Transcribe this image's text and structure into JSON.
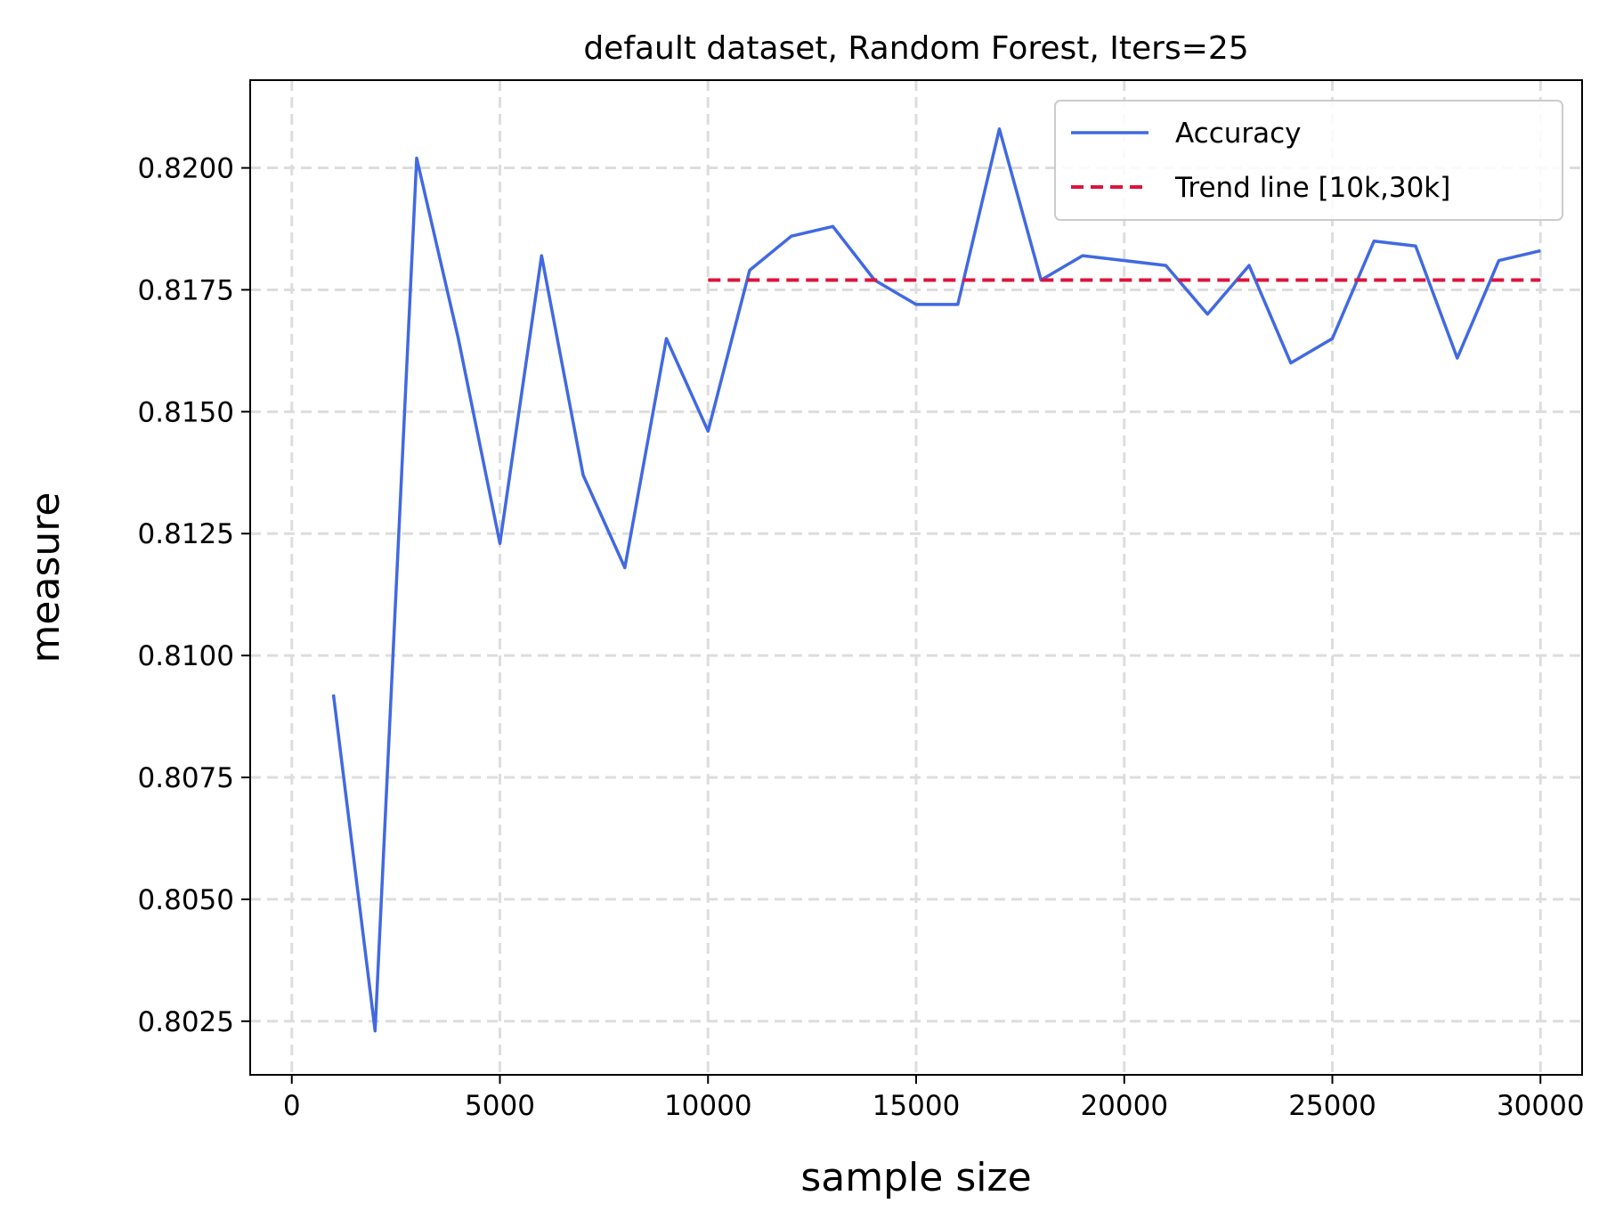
{
  "chart_data": {
    "type": "line",
    "title": "default dataset, Random Forest, Iters=25",
    "xlabel": "sample size",
    "ylabel": "measure",
    "xlim": [
      -1000,
      31000
    ],
    "ylim": [
      0.8014,
      0.8218
    ],
    "xticks": [
      0,
      5000,
      10000,
      15000,
      20000,
      25000,
      30000
    ],
    "xtick_labels": [
      "0",
      "5000",
      "10000",
      "15000",
      "20000",
      "25000",
      "30000"
    ],
    "yticks": [
      0.8025,
      0.805,
      0.8075,
      0.81,
      0.8125,
      0.815,
      0.8175,
      0.82
    ],
    "ytick_labels": [
      "0.8025",
      "0.8050",
      "0.8075",
      "0.8100",
      "0.8125",
      "0.8150",
      "0.8175",
      "0.8200"
    ],
    "grid": true,
    "legend_position": "top-right",
    "series": [
      {
        "name": "Accuracy",
        "color": "#4169e1",
        "style": "solid",
        "x": [
          1000,
          2000,
          3000,
          4000,
          5000,
          6000,
          7000,
          8000,
          9000,
          10000,
          11000,
          12000,
          13000,
          14000,
          15000,
          16000,
          17000,
          18000,
          19000,
          20000,
          21000,
          22000,
          23000,
          24000,
          25000,
          26000,
          27000,
          28000,
          29000,
          30000
        ],
        "y": [
          0.8092,
          0.8023,
          0.8202,
          0.8165,
          0.8123,
          0.8182,
          0.8137,
          0.8118,
          0.8165,
          0.8146,
          0.8179,
          0.8186,
          0.8188,
          0.8177,
          0.8172,
          0.8172,
          0.8208,
          0.8177,
          0.8182,
          0.8181,
          0.818,
          0.817,
          0.818,
          0.816,
          0.8165,
          0.8185,
          0.8184,
          0.8161,
          0.8181,
          0.8183
        ]
      },
      {
        "name": "Trend line [10k,30k]",
        "color": "#dc143c",
        "style": "dashed",
        "x": [
          10000,
          30000
        ],
        "y": [
          0.8177,
          0.8177
        ]
      }
    ]
  }
}
